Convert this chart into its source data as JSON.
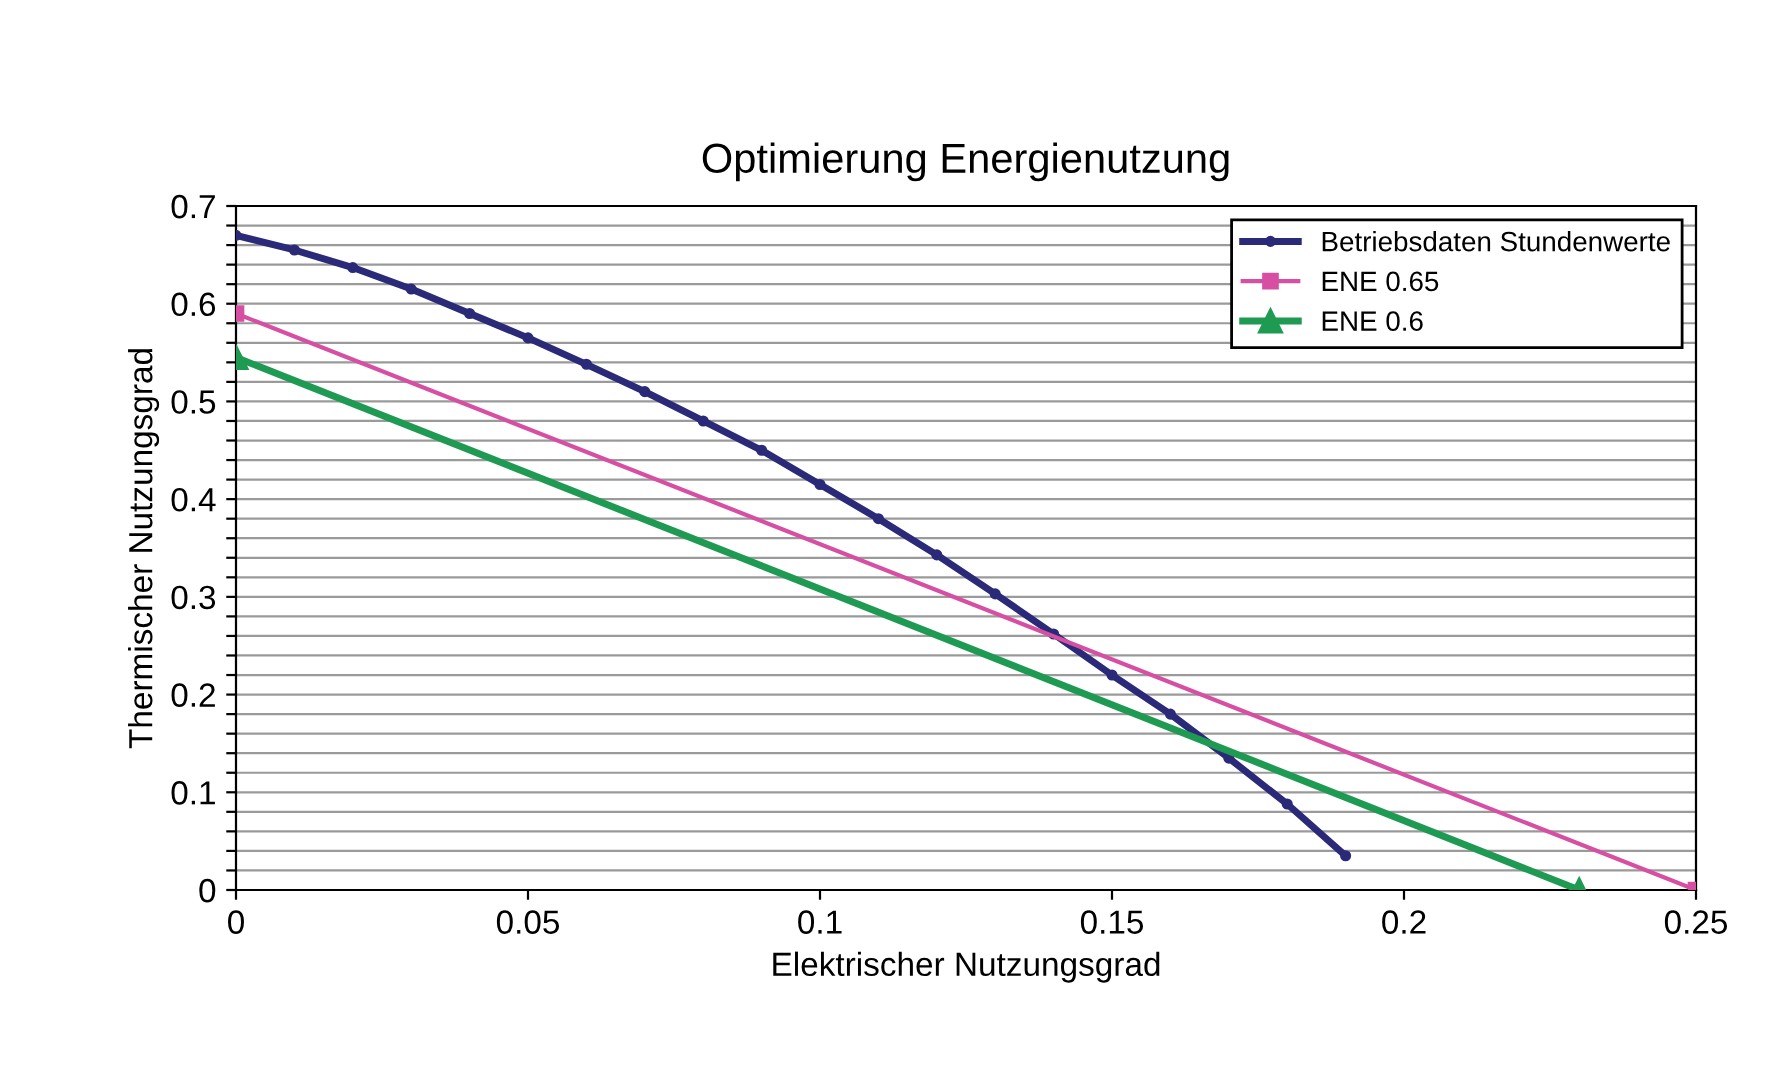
{
  "chart_data": {
    "type": "line",
    "title": "Optimierung Energienutzung",
    "xlabel": "Elektrischer Nutzungsgrad",
    "ylabel": "Thermischer Nutzungsgrad",
    "xlim": [
      0,
      0.25
    ],
    "xticks": [
      0,
      0.05,
      0.1,
      0.15,
      0.2,
      0.25
    ],
    "ylim": [
      0,
      0.7
    ],
    "yticks": [
      0,
      {
        "value": 0.02,
        "label": null
      },
      {
        "value": 0.04,
        "label": null
      },
      {
        "value": 0.06,
        "label": null
      },
      {
        "value": 0.08,
        "label": null
      },
      0.1,
      {
        "value": 0.12,
        "label": null
      },
      {
        "value": 0.14,
        "label": null
      },
      {
        "value": 0.16,
        "label": null
      },
      {
        "value": 0.18,
        "label": null
      },
      0.2,
      {
        "value": 0.22,
        "label": null
      },
      {
        "value": 0.24,
        "label": null
      },
      {
        "value": 0.26,
        "label": null
      },
      {
        "value": 0.28,
        "label": null
      },
      0.3,
      {
        "value": 0.32,
        "label": null
      },
      {
        "value": 0.34,
        "label": null
      },
      {
        "value": 0.36,
        "label": null
      },
      {
        "value": 0.38,
        "label": null
      },
      0.4,
      {
        "value": 0.42,
        "label": null
      },
      {
        "value": 0.44,
        "label": null
      },
      {
        "value": 0.46,
        "label": null
      },
      {
        "value": 0.48,
        "label": null
      },
      0.5,
      {
        "value": 0.52,
        "label": null
      },
      {
        "value": 0.54,
        "label": null
      },
      {
        "value": 0.56,
        "label": null
      },
      {
        "value": 0.58,
        "label": null
      },
      0.6,
      {
        "value": 0.62,
        "label": null
      },
      {
        "value": 0.64,
        "label": null
      },
      {
        "value": 0.66,
        "label": null
      },
      {
        "value": 0.68,
        "label": null
      },
      0.7
    ],
    "grid": "y",
    "legend": "top right",
    "series": [
      {
        "name": "Betriebsdaten Stundenwerte",
        "color": "#2b2a78",
        "marker": "circle",
        "x": [
          0,
          0.01,
          0.02,
          0.03,
          0.04,
          0.05,
          0.06,
          0.07,
          0.08,
          0.09,
          0.1,
          0.11,
          0.12,
          0.13,
          0.14,
          0.15,
          0.16,
          0.17,
          0.18,
          0.19
        ],
        "values": [
          0.67,
          0.655,
          0.637,
          0.615,
          0.59,
          0.565,
          0.538,
          0.51,
          0.48,
          0.45,
          0.415,
          0.38,
          0.343,
          0.303,
          0.262,
          0.22,
          0.18,
          0.135,
          0.088,
          0.035
        ]
      },
      {
        "name": "ENE 0.65",
        "color": "#d64fa3",
        "marker": "square",
        "x": [
          0,
          0.25
        ],
        "values": [
          0.59,
          0
        ]
      },
      {
        "name": "ENE 0.6",
        "color": "#1f9a52",
        "marker": "triangle",
        "x": [
          0,
          0.23
        ],
        "values": [
          0.545,
          0
        ]
      }
    ]
  }
}
